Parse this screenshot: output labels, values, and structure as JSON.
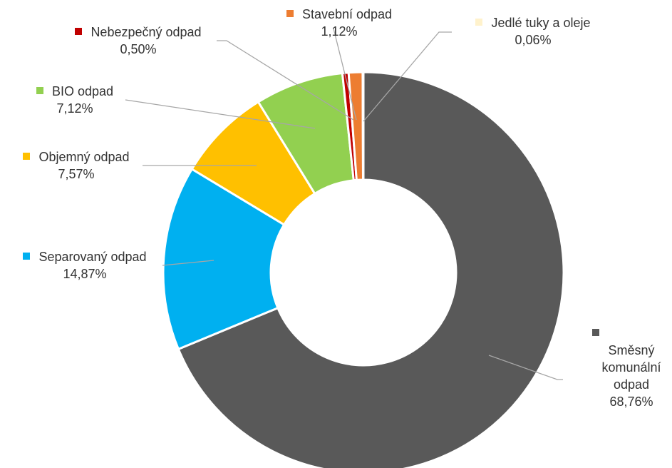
{
  "chart_data": {
    "type": "donut",
    "slices": [
      {
        "name": "Směsný komunální odpad",
        "value": 68.76,
        "label": "68,76%",
        "color": "#595959"
      },
      {
        "name": "Separovaný odpad",
        "value": 14.87,
        "label": "14,87%",
        "color": "#00b0f0"
      },
      {
        "name": "Objemný odpad",
        "value": 7.57,
        "label": "7,57%",
        "color": "#ffc000"
      },
      {
        "name": "BIO odpad",
        "value": 7.12,
        "label": "7,12%",
        "color": "#92d050"
      },
      {
        "name": "Nebezpečný odpad",
        "value": 0.5,
        "label": "0,50%",
        "color": "#c00000"
      },
      {
        "name": "Stavební odpad",
        "value": 1.12,
        "label": "1,12%",
        "color": "#ed7d31"
      },
      {
        "name": "Jedlé tuky a oleje",
        "value": 0.06,
        "label": "0,06%",
        "color": "#fff2cc"
      }
    ],
    "start_angle_deg": 90,
    "direction": "clockwise",
    "leader_line_color": "#a6a6a6"
  },
  "labels": {
    "smesny_line1": "Směsný",
    "smesny_line2": "komunální",
    "smesny_line3": "odpad",
    "smesny_value": "68,76%",
    "separovany": "Separovaný odpad",
    "separovany_value": "14,87%",
    "objemny": "Objemný odpad",
    "objemny_value": "7,57%",
    "bio": "BIO odpad",
    "bio_value": "7,12%",
    "nebezpecny": "Nebezpečný odpad",
    "nebezpecny_value": "0,50%",
    "stavebni": "Stavební odpad",
    "stavebni_value": "1,12%",
    "jedle": "Jedlé tuky a oleje",
    "jedle_value": "0,06%"
  }
}
